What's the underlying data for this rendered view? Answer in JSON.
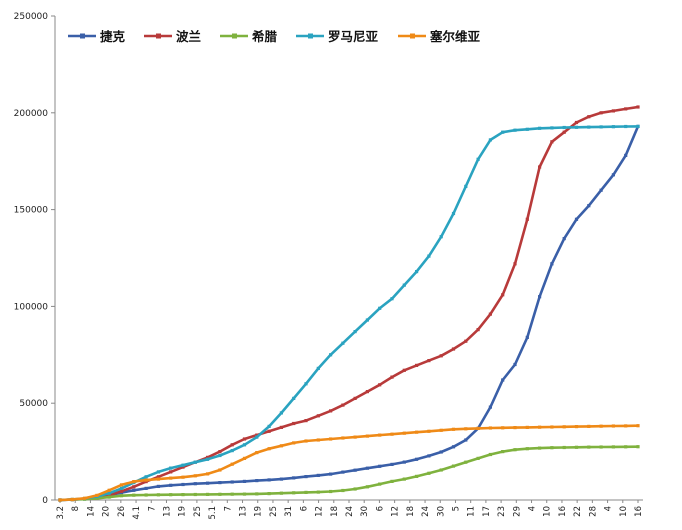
{
  "chart_data": {
    "type": "line",
    "title": "",
    "xlabel": "",
    "ylabel": "",
    "ylim": [
      0,
      250000
    ],
    "yticks": [
      "0",
      "50000",
      "100000",
      "150000",
      "200000",
      "250000"
    ],
    "x_tick_labels": [
      "3.2",
      "8",
      "14",
      "20",
      "26",
      "4.1",
      "7",
      "13",
      "19",
      "25",
      "5.1",
      "7",
      "13",
      "19",
      "25",
      "31",
      "6",
      "12",
      "18",
      "24",
      "30",
      "6",
      "12",
      "18",
      "24",
      "30",
      "5",
      "11",
      "17",
      "23",
      "29",
      "4",
      "10",
      "16",
      "22",
      "28",
      "4",
      "10",
      "16"
    ],
    "grid": false,
    "legend_position": "top",
    "series": [
      {
        "name": "捷克",
        "color": "#3a5fa8",
        "x": [
          0,
          5,
          10,
          15,
          20,
          25,
          30,
          35,
          40,
          45,
          50,
          55,
          60,
          65,
          70,
          75,
          80,
          85,
          90,
          95,
          100,
          105,
          110,
          115,
          120,
          125,
          130,
          135,
          140,
          145,
          150,
          155,
          160,
          165,
          170,
          175,
          180,
          185,
          190,
          195,
          200,
          205,
          210,
          215,
          220,
          225,
          230,
          235
        ],
        "values": [
          0,
          200,
          500,
          1000,
          2400,
          3800,
          5000,
          6000,
          7000,
          7600,
          8000,
          8400,
          8700,
          9000,
          9300,
          9600,
          10000,
          10400,
          10800,
          11400,
          12100,
          12700,
          13400,
          14400,
          15400,
          16400,
          17400,
          18400,
          19600,
          21000,
          22800,
          24800,
          27500,
          31000,
          37000,
          48000,
          62000,
          70000,
          84000,
          105000,
          122000,
          135000,
          145000,
          152000,
          160000,
          168000,
          178000,
          193000
        ]
      },
      {
        "name": "波兰",
        "color": "#b83a3a",
        "x": [
          0,
          5,
          10,
          15,
          20,
          25,
          30,
          35,
          40,
          45,
          50,
          55,
          60,
          65,
          70,
          75,
          80,
          85,
          90,
          95,
          100,
          105,
          110,
          115,
          120,
          125,
          130,
          135,
          140,
          145,
          150,
          155,
          160,
          165,
          170,
          175,
          180,
          185,
          190,
          195,
          200,
          205,
          210,
          215,
          220,
          225,
          230,
          235
        ],
        "values": [
          0,
          200,
          600,
          1200,
          2500,
          4500,
          6800,
          9500,
          12000,
          14500,
          17000,
          19500,
          22000,
          25000,
          28500,
          31500,
          33500,
          35500,
          37500,
          39500,
          41000,
          43500,
          46000,
          49000,
          52500,
          56000,
          59500,
          63500,
          67000,
          69500,
          72000,
          74500,
          78000,
          82000,
          88000,
          96000,
          106000,
          122000,
          145000,
          172000,
          185000,
          190000,
          195000,
          198000,
          200000,
          201000,
          202000,
          203000
        ]
      },
      {
        "name": "希腊",
        "color": "#7fb23e",
        "x": [
          0,
          5,
          10,
          15,
          20,
          25,
          30,
          35,
          40,
          45,
          50,
          55,
          60,
          65,
          70,
          75,
          80,
          85,
          90,
          95,
          100,
          105,
          110,
          115,
          120,
          125,
          130,
          135,
          140,
          145,
          150,
          155,
          160,
          165,
          170,
          175,
          180,
          185,
          190,
          195,
          200,
          205,
          210,
          215,
          220,
          225,
          230,
          235
        ],
        "values": [
          0,
          200,
          400,
          900,
          1500,
          2200,
          2500,
          2600,
          2700,
          2750,
          2800,
          2850,
          2900,
          2950,
          3000,
          3050,
          3150,
          3300,
          3500,
          3700,
          3900,
          4100,
          4400,
          4900,
          5700,
          6800,
          8200,
          9600,
          10800,
          12200,
          13800,
          15500,
          17500,
          19500,
          21500,
          23500,
          25000,
          26000,
          26500,
          26800,
          27000,
          27100,
          27200,
          27300,
          27400,
          27450,
          27500,
          27550
        ]
      },
      {
        "name": "罗马尼亚",
        "color": "#2aa3c0",
        "x": [
          0,
          5,
          10,
          15,
          20,
          25,
          30,
          35,
          40,
          45,
          50,
          55,
          60,
          65,
          70,
          75,
          80,
          85,
          90,
          95,
          100,
          105,
          110,
          115,
          120,
          125,
          130,
          135,
          140,
          145,
          150,
          155,
          160,
          165,
          170,
          175,
          180,
          185,
          190,
          195,
          200,
          205,
          210,
          215,
          220,
          225,
          230,
          235
        ],
        "values": [
          0,
          300,
          800,
          1800,
          3500,
          6000,
          9000,
          12000,
          14500,
          16500,
          18000,
          19500,
          21000,
          23000,
          25500,
          28500,
          32500,
          38000,
          45000,
          52500,
          60000,
          68000,
          75000,
          81000,
          87000,
          93000,
          99000,
          104000,
          111000,
          118000,
          126000,
          136000,
          148000,
          162000,
          176000,
          186000,
          190000,
          191000,
          191500,
          192000,
          192200,
          192400,
          192500,
          192600,
          192700,
          192800,
          192900,
          193000
        ]
      },
      {
        "name": "塞尔维亚",
        "color": "#ef8a17",
        "x": [
          0,
          5,
          10,
          15,
          20,
          25,
          30,
          35,
          40,
          45,
          50,
          55,
          60,
          65,
          70,
          75,
          80,
          85,
          90,
          95,
          100,
          105,
          110,
          115,
          120,
          125,
          130,
          135,
          140,
          145,
          150,
          155,
          160,
          165,
          170,
          175,
          180,
          185,
          190,
          195,
          200,
          205,
          210,
          215,
          220,
          225,
          230,
          235
        ],
        "values": [
          0,
          300,
          900,
          2400,
          5000,
          7800,
          9500,
          10300,
          10800,
          11300,
          11800,
          12500,
          13500,
          15500,
          18500,
          21500,
          24500,
          26500,
          28000,
          29500,
          30500,
          31000,
          31500,
          32000,
          32500,
          33000,
          33500,
          34000,
          34500,
          35000,
          35500,
          36000,
          36500,
          36800,
          37000,
          37200,
          37300,
          37400,
          37500,
          37600,
          37700,
          37800,
          37900,
          38000,
          38100,
          38200,
          38300,
          38400
        ]
      }
    ]
  }
}
